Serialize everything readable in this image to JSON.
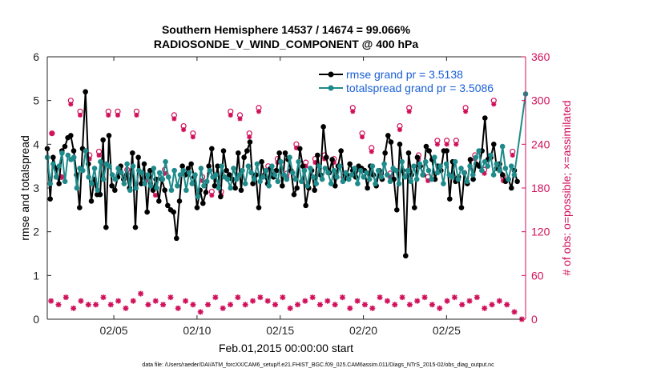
{
  "chart_data": {
    "type": "line",
    "title_line1": "Southern Hemisphere 14537 / 14674 = 99.066%",
    "title_line2": "RADIOSONDE_V_WIND_COMPONENT @ 400 hPa",
    "xlabel": "Feb.01,2015 00:00:00 start",
    "ylabel_left": "rmse and totalspread",
    "ylabel_right": "# of obs: o=possible; ×=assimilated",
    "footer": "data file: /Users/raeder/DAI/ATM_forcXX/CAM6_setup/f.e21.FHIST_BGC.f09_025.CAM6assim.011/Diags_NTrS_2015-02/obs_diag_output.nc",
    "xlim": [
      1,
      29.75
    ],
    "ylim_left": [
      0,
      6
    ],
    "ylim_right": [
      0,
      360
    ],
    "xticks": [
      5,
      10,
      15,
      20,
      25
    ],
    "xtick_labels": [
      "02/05",
      "02/10",
      "02/15",
      "02/20",
      "02/25"
    ],
    "yticks_left": [
      "0",
      "1",
      "2",
      "3",
      "4",
      "5",
      "6"
    ],
    "yticks_right": [
      "0",
      "60",
      "120",
      "180",
      "240",
      "300",
      "360"
    ],
    "series": [
      {
        "name": "rmse grand pr = 3.5138",
        "color": "#000000",
        "values": [
          3.9,
          2.75,
          3.7,
          3.45,
          3.1,
          3.85,
          3.95,
          4.15,
          4.2,
          3.85,
          3.3,
          2.55,
          3.9,
          5.2,
          3.55,
          2.7,
          3.2,
          2.85,
          2.85,
          4.1,
          2.1,
          4.2,
          3.05,
          2.95,
          3.25,
          3.5,
          3.2,
          3.3,
          3.0,
          3.8,
          2.1,
          3.7,
          3.1,
          3.55,
          2.45,
          3.4,
          2.95,
          3.2,
          2.7,
          3.2,
          2.95,
          2.6,
          2.5,
          2.45,
          1.85,
          2.7,
          3.5,
          3.3,
          3.45,
          3.55,
          3.25,
          2.55,
          2.95,
          2.65,
          2.9,
          3.5,
          3.9,
          3.05,
          3.5,
          2.8,
          3.85,
          3.4,
          3.3,
          3.2,
          3.0,
          3.8,
          2.95,
          3.7,
          3.85,
          4.05,
          3.1,
          3.3,
          2.55,
          3.6,
          3.3,
          3.1,
          3.45,
          3.25,
          3.4,
          3.8,
          3.05,
          3.8,
          3.65,
          3.4,
          2.85,
          3.0,
          3.9,
          3.5,
          2.6,
          3.0,
          3.4,
          2.95,
          3.75,
          3.3,
          4.4,
          3.7,
          3.35,
          3.65,
          3.05,
          3.5,
          3.85,
          3.2,
          3.3,
          3.55,
          3.4,
          3.25,
          3.5,
          3.45,
          3.4,
          3.0,
          3.5,
          3.3,
          3.05,
          3.4,
          3.2,
          3.8,
          4.2,
          4.05,
          3.2,
          2.5,
          4.0,
          3.4,
          1.45,
          3.8,
          3.3,
          2.55,
          3.7,
          3.5,
          3.3,
          3.95,
          3.85,
          3.65,
          3.2,
          3.5,
          3.4,
          3.85,
          3.85,
          2.75,
          3.6,
          3.15,
          3.25,
          2.55,
          3.35,
          3.1,
          3.65,
          3.2,
          3.55,
          3.5,
          3.85,
          4.6,
          3.65,
          3.7,
          4.0,
          3.45,
          3.55,
          3.3,
          3.15,
          3.2,
          3.0,
          3.4,
          3.15
        ]
      },
      {
        "name": "totalspread grand pr = 3.5086",
        "color": "#1f8a8a",
        "values": [
          3.7,
          3.1,
          3.55,
          3.25,
          3.5,
          3.8,
          3.15,
          3.75,
          3.65,
          3.7,
          3.0,
          3.45,
          3.4,
          3.85,
          3.25,
          3.1,
          3.45,
          2.95,
          3.6,
          3.2,
          3.55,
          3.5,
          3.3,
          3.2,
          3.45,
          3.35,
          3.1,
          3.55,
          2.95,
          3.5,
          3.0,
          3.4,
          3.35,
          3.1,
          3.3,
          3.05,
          3.45,
          3.0,
          3.35,
          3.2,
          3.6,
          3.25,
          2.95,
          3.4,
          3.05,
          3.3,
          3.4,
          2.95,
          3.35,
          3.1,
          3.3,
          2.8,
          3.45,
          3.05,
          3.15,
          3.4,
          3.25,
          3.3,
          3.0,
          3.5,
          3.25,
          3.2,
          3.0,
          3.45,
          3.2,
          3.3,
          3.4,
          3.1,
          3.5,
          3.35,
          3.2,
          3.55,
          3.15,
          3.25,
          3.4,
          3.05,
          3.5,
          3.3,
          3.15,
          3.6,
          3.3,
          3.2,
          3.7,
          3.35,
          3.2,
          3.6,
          3.15,
          3.4,
          3.05,
          3.45,
          3.25,
          3.1,
          3.5,
          3.2,
          3.45,
          3.35,
          3.1,
          3.4,
          3.25,
          3.5,
          3.15,
          3.35,
          3.2,
          3.3,
          3.45,
          3.1,
          3.4,
          3.25,
          3.35,
          3.2,
          3.5,
          3.1,
          3.4,
          3.25,
          3.55,
          3.3,
          3.15,
          3.45,
          3.4,
          3.1,
          3.6,
          3.25,
          3.4,
          3.15,
          3.5,
          3.2,
          3.55,
          3.3,
          3.6,
          3.4,
          3.2,
          3.7,
          3.35,
          3.5,
          3.1,
          3.55,
          3.3,
          3.25,
          3.6,
          3.2,
          3.45,
          3.35,
          3.15,
          3.5,
          3.3,
          3.7,
          3.85,
          3.4,
          3.6,
          3.5,
          3.75,
          3.3,
          3.55,
          3.4,
          3.95,
          3.45,
          3.2,
          3.5,
          3.3,
          5.15
        ]
      }
    ],
    "obs_possible_upper": [
      255,
      195,
      300,
      285,
      225,
      230,
      285,
      285,
      205,
      285,
      195,
      175,
      205,
      280,
      265,
      255,
      195,
      175,
      175,
      285,
      280,
      255,
      290,
      210,
      220,
      200,
      240,
      215,
      220,
      225,
      220,
      195,
      290,
      255,
      235,
      200,
      200,
      265,
      290,
      225,
      195,
      245,
      245,
      245,
      290,
      225,
      205,
      300,
      195,
      230
    ],
    "obs_assimilated_upper": [
      255,
      195,
      295,
      280,
      220,
      225,
      280,
      280,
      200,
      280,
      190,
      170,
      200,
      275,
      260,
      250,
      190,
      170,
      170,
      280,
      275,
      250,
      285,
      205,
      215,
      195,
      235,
      210,
      215,
      220,
      215,
      190,
      285,
      250,
      230,
      195,
      195,
      260,
      285,
      220,
      190,
      240,
      240,
      240,
      285,
      220,
      200,
      295,
      190,
      225
    ],
    "obs_lower": [
      25,
      20,
      30,
      15,
      25,
      20,
      20,
      30,
      20,
      25,
      15,
      25,
      35,
      20,
      25,
      20,
      30,
      15,
      25,
      20,
      10,
      20,
      30,
      15,
      20,
      30,
      20,
      25,
      30,
      25,
      20,
      30,
      15,
      20,
      25,
      30,
      20,
      25,
      20,
      30,
      15,
      25,
      20,
      15,
      30,
      25,
      20,
      30,
      20,
      25,
      30,
      20,
      15,
      25,
      30,
      20,
      25,
      30,
      15,
      20,
      25,
      20,
      10,
      0
    ]
  }
}
